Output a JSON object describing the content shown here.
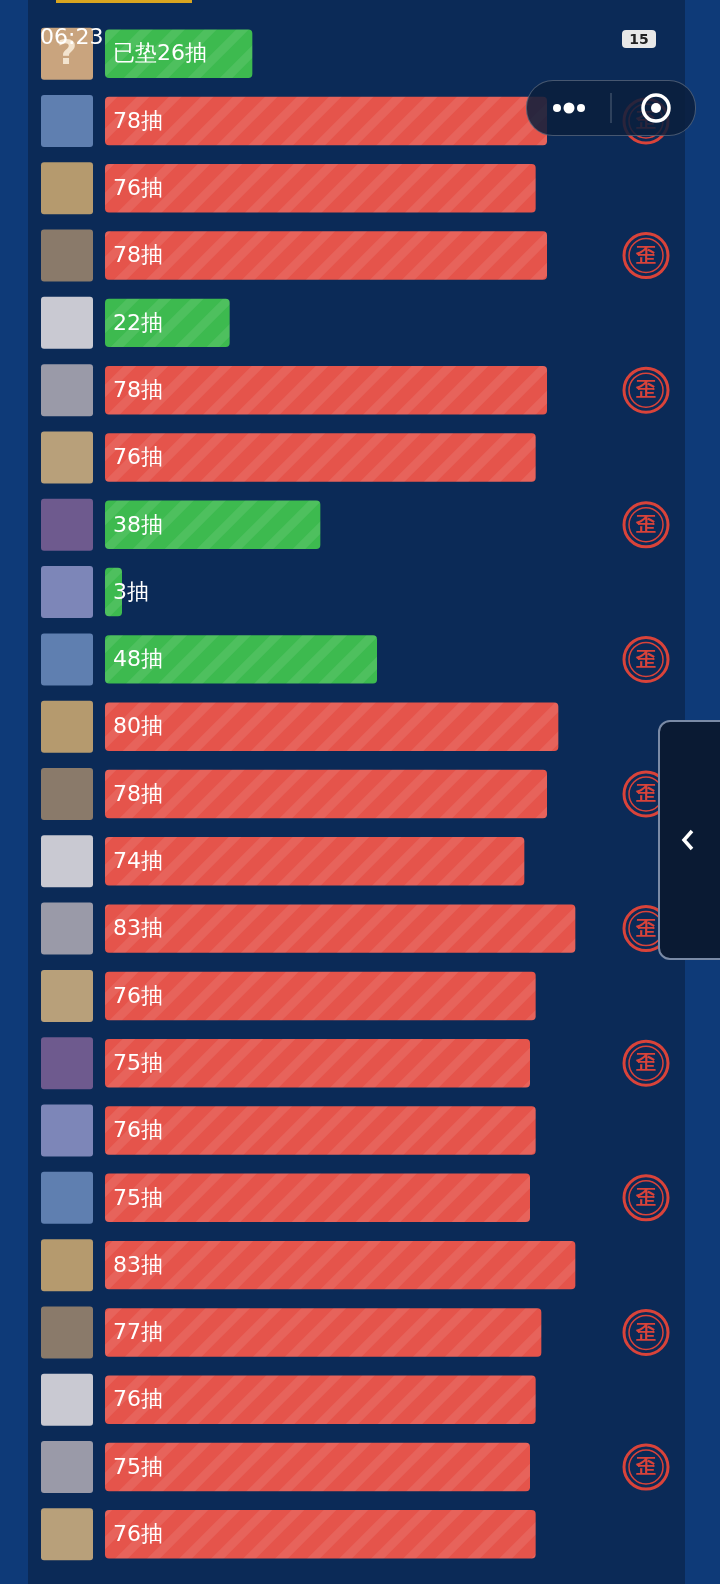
{
  "status_bar": {
    "time": "06:23",
    "battery": "15"
  },
  "unknown_icon": "?",
  "chart_data": {
    "type": "bar",
    "orientation": "horizontal",
    "categories": [
      null,
      null,
      null,
      null,
      null,
      null,
      null,
      null,
      null,
      null,
      null,
      null,
      null,
      null,
      null,
      null,
      null,
      null,
      null,
      null,
      null,
      null,
      null
    ],
    "values": [
      26,
      78,
      76,
      78,
      22,
      78,
      76,
      38,
      3,
      48,
      80,
      78,
      74,
      83,
      76,
      75,
      76,
      75,
      83,
      77,
      76,
      75,
      76
    ],
    "value_labels": [
      "已垫26抽",
      "78抽",
      "76抽",
      "78抽",
      "22抽",
      "78抽",
      "76抽",
      "38抽",
      "3抽",
      "48抽",
      "80抽",
      "78抽",
      "74抽",
      "83抽",
      "76抽",
      "75抽",
      "76抽",
      "75抽",
      "83抽",
      "77抽",
      "76抽",
      "75抽",
      "76抽"
    ],
    "colors": [
      "#3dba4f",
      "#e5544b",
      "#e5544b",
      "#e5544b",
      "#3dba4f",
      "#e5544b",
      "#e5544b",
      "#3dba4f",
      "#3dba4f",
      "#3dba4f",
      "#e5544b",
      "#e5544b",
      "#e5544b",
      "#e5544b",
      "#e5544b",
      "#e5544b",
      "#e5544b",
      "#e5544b",
      "#e5544b",
      "#e5544b",
      "#e5544b",
      "#e5544b",
      "#e5544b"
    ],
    "xlim": [
      0,
      90
    ],
    "annotations": [
      {
        "index": 1,
        "text": "歪"
      },
      {
        "index": 3,
        "text": "歪"
      },
      {
        "index": 5,
        "text": "歪"
      },
      {
        "index": 7,
        "text": "歪"
      },
      {
        "index": 9,
        "text": "歪"
      },
      {
        "index": 11,
        "text": "歪"
      },
      {
        "index": 13,
        "text": "歪"
      },
      {
        "index": 15,
        "text": "歪"
      },
      {
        "index": 17,
        "text": "歪"
      },
      {
        "index": 19,
        "text": "歪"
      },
      {
        "index": 21,
        "text": "歪"
      }
    ],
    "data_labels": true,
    "tick_labels": false,
    "grid": false
  }
}
